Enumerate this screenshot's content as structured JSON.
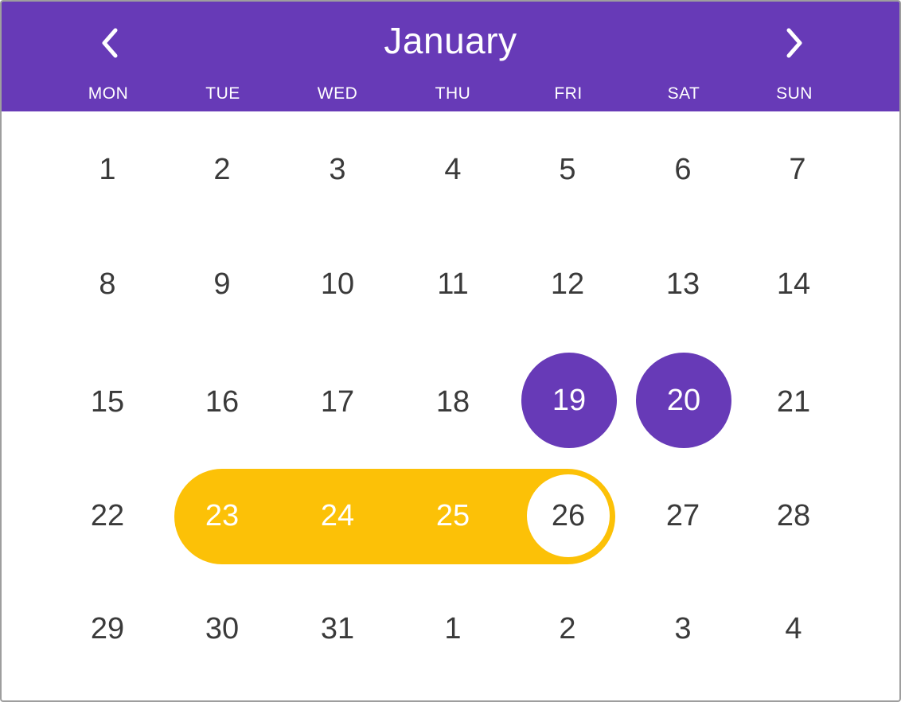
{
  "header": {
    "month": "January",
    "prev_icon": "chevron-left-icon",
    "next_icon": "chevron-right-icon"
  },
  "weekdays": [
    "MON",
    "TUE",
    "WED",
    "THU",
    "FRI",
    "SAT",
    "SUN"
  ],
  "weeks": [
    [
      "1",
      "2",
      "3",
      "4",
      "5",
      "6",
      "7"
    ],
    [
      "8",
      "9",
      "10",
      "11",
      "12",
      "13",
      "14"
    ],
    [
      "15",
      "16",
      "17",
      "18",
      "19",
      "20",
      "21"
    ],
    [
      "22",
      "23",
      "24",
      "25",
      "26",
      "27",
      "28"
    ],
    [
      "29",
      "30",
      "31",
      "1",
      "2",
      "3",
      "4"
    ]
  ],
  "selected_days": [
    "19",
    "20"
  ],
  "range": {
    "start": "23",
    "end": "26"
  },
  "colors": {
    "header": "#673ab7",
    "selected": "#673ab7",
    "range": "#fcc107",
    "day_text": "#3a3a3a"
  }
}
